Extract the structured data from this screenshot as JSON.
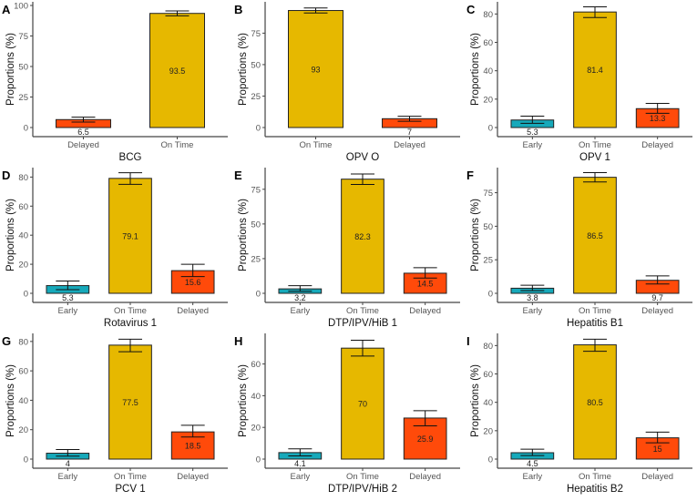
{
  "colors": {
    "Early": "#16A9BA",
    "On Time": "#E6B800",
    "Delayed": "#FF4A0A"
  },
  "chart_data": [
    {
      "type": "bar",
      "letter": "A",
      "xlabel": "BCG",
      "ylabel": "Proportions (%)",
      "ylim": [
        0,
        100
      ],
      "ticks": [
        0,
        25,
        50,
        75,
        100
      ],
      "categories": [
        "Delayed",
        "On Time"
      ],
      "values": [
        6.5,
        93.5
      ],
      "labels": [
        "6.5",
        "93.5"
      ],
      "errors": [
        [
          4.5,
          8.5
        ],
        [
          91.5,
          95.5
        ]
      ]
    },
    {
      "type": "bar",
      "letter": "B",
      "xlabel": "OPV O",
      "ylabel": "Proportions (%)",
      "ylim": [
        0,
        97
      ],
      "ticks": [
        0,
        25,
        50,
        75
      ],
      "categories": [
        "On Time",
        "Delayed"
      ],
      "values": [
        93,
        7
      ],
      "labels": [
        "93",
        "7"
      ],
      "errors": [
        [
          91,
          95
        ],
        [
          5,
          9
        ]
      ]
    },
    {
      "type": "bar",
      "letter": "C",
      "xlabel": "OPV 1",
      "ylabel": "Proportions (%)",
      "ylim": [
        0,
        86
      ],
      "ticks": [
        0,
        20,
        40,
        60,
        80
      ],
      "categories": [
        "Early",
        "On Time",
        "Delayed"
      ],
      "values": [
        5.3,
        81.4,
        13.3
      ],
      "labels": [
        "5.3",
        "81.4",
        "13.3"
      ],
      "errors": [
        [
          3,
          8
        ],
        [
          77.5,
          85
        ],
        [
          10,
          17
        ]
      ]
    },
    {
      "type": "bar",
      "letter": "D",
      "xlabel": "Rotavirus 1",
      "ylabel": "Proportions (%)",
      "ylim": [
        0,
        84
      ],
      "ticks": [
        0,
        20,
        40,
        60,
        80
      ],
      "categories": [
        "Early",
        "On Time",
        "Delayed"
      ],
      "values": [
        5.3,
        79.1,
        15.6
      ],
      "labels": [
        "5.3",
        "79.1",
        "15.6"
      ],
      "errors": [
        [
          2.5,
          8.5
        ],
        [
          75,
          83
        ],
        [
          11.5,
          20
        ]
      ]
    },
    {
      "type": "bar",
      "letter": "E",
      "xlabel": "DTP/IPV/HiB 1",
      "ylabel": "Proportions (%)",
      "ylim": [
        0,
        88
      ],
      "ticks": [
        0,
        25,
        50,
        75
      ],
      "categories": [
        "Early",
        "On Time",
        "Delayed"
      ],
      "values": [
        3.2,
        82.3,
        14.5
      ],
      "labels": [
        "3.2",
        "82.3",
        "14.5"
      ],
      "errors": [
        [
          1.5,
          5.5
        ],
        [
          78.5,
          86
        ],
        [
          11,
          18.5
        ]
      ]
    },
    {
      "type": "bar",
      "letter": "F",
      "xlabel": "Hepatitis B1",
      "ylabel": "Proportions (%)",
      "ylim": [
        0,
        91
      ],
      "ticks": [
        0,
        25,
        50,
        75
      ],
      "categories": [
        "Early",
        "On Time",
        "Delayed"
      ],
      "values": [
        3.8,
        86.5,
        9.7
      ],
      "labels": [
        "3.8",
        "86.5",
        "9.7"
      ],
      "errors": [
        [
          2,
          6
        ],
        [
          83,
          90
        ],
        [
          7,
          13
        ]
      ]
    },
    {
      "type": "bar",
      "letter": "G",
      "xlabel": "PCV 1",
      "ylabel": "Proportions (%)",
      "ylim": [
        0,
        83
      ],
      "ticks": [
        0,
        20,
        40,
        60,
        80
      ],
      "categories": [
        "Early",
        "On Time",
        "Delayed"
      ],
      "values": [
        4,
        77.5,
        18.5
      ],
      "labels": [
        "4",
        "77.5",
        "18.5"
      ],
      "errors": [
        [
          2,
          6.5
        ],
        [
          73,
          81.5
        ],
        [
          15,
          23
        ]
      ]
    },
    {
      "type": "bar",
      "letter": "H",
      "xlabel": "DTP/IPV/HiB 2",
      "ylabel": "Proportions (%)",
      "ylim": [
        0,
        77
      ],
      "ticks": [
        0,
        20,
        40,
        60
      ],
      "categories": [
        "Early",
        "On Time",
        "Delayed"
      ],
      "values": [
        4.1,
        70,
        25.9
      ],
      "labels": [
        "4.1",
        "70",
        "25.9"
      ],
      "errors": [
        [
          2,
          6.5
        ],
        [
          65,
          75
        ],
        [
          21,
          30.5
        ]
      ]
    },
    {
      "type": "bar",
      "letter": "I",
      "xlabel": "Hepatitis B2",
      "ylabel": "Proportions (%)",
      "ylim": [
        0,
        86
      ],
      "ticks": [
        0,
        20,
        40,
        60,
        80
      ],
      "categories": [
        "Early",
        "On Time",
        "Delayed"
      ],
      "values": [
        4.5,
        80.5,
        15
      ],
      "labels": [
        "4.5",
        "80.5",
        "15"
      ],
      "errors": [
        [
          2.5,
          7
        ],
        [
          76,
          84.5
        ],
        [
          11.5,
          19
        ]
      ]
    }
  ]
}
